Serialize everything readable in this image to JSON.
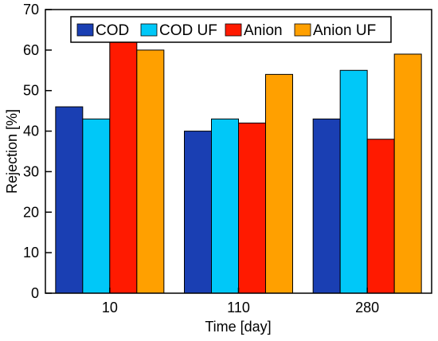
{
  "chart_data": {
    "type": "bar",
    "xlabel": "Time [day]",
    "ylabel": "Rejection [%]",
    "ylim": [
      0,
      70
    ],
    "yticks": [
      0,
      10,
      20,
      30,
      40,
      50,
      60,
      70
    ],
    "categories": [
      "10",
      "110",
      "280"
    ],
    "legend_position": "top",
    "grid": false,
    "series": [
      {
        "name": "COD",
        "color": "#1a3fb3",
        "values": [
          46,
          40,
          43
        ]
      },
      {
        "name": "COD UF",
        "color": "#00c8f8",
        "values": [
          43,
          43,
          55
        ]
      },
      {
        "name": "Anion",
        "color": "#ff1a00",
        "values": [
          62,
          42,
          38
        ]
      },
      {
        "name": "Anion UF",
        "color": "#ffa000",
        "values": [
          60,
          54,
          59
        ]
      }
    ]
  }
}
